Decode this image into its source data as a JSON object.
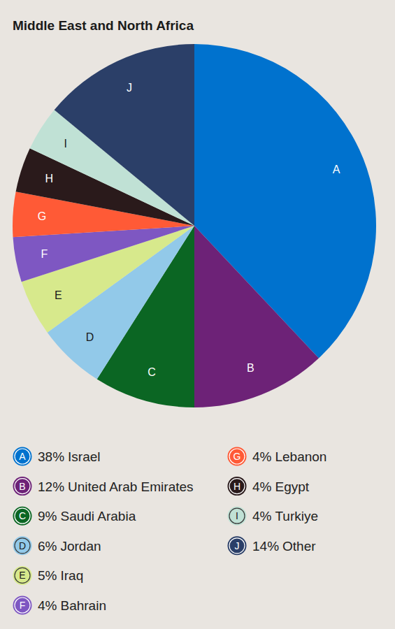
{
  "chart_data": {
    "type": "pie",
    "title": "Middle East and North Africa",
    "categories": [
      "Israel",
      "United Arab Emirates",
      "Saudi Arabia",
      "Jordan",
      "Iraq",
      "Bahrain",
      "Lebanon",
      "Egypt",
      "Turkiye",
      "Other"
    ],
    "values": [
      38,
      12,
      9,
      6,
      5,
      4,
      4,
      4,
      4,
      14
    ],
    "value_labels": [
      "38%",
      "12%",
      "9%",
      "6%",
      "5%",
      "4%",
      "4%",
      "4%",
      "4%",
      "14%"
    ],
    "slice_labels": [
      "A",
      "B",
      "C",
      "D",
      "E",
      "F",
      "G",
      "H",
      "I",
      "J"
    ],
    "colors": [
      "#0072ce",
      "#6d2277",
      "#0b6623",
      "#92c9e9",
      "#d7e98c",
      "#7e57c2",
      "#ff5a36",
      "#2a1a1b",
      "#c0e1d5",
      "#2b3f68"
    ],
    "data_labels": true,
    "legend": "bottom"
  }
}
